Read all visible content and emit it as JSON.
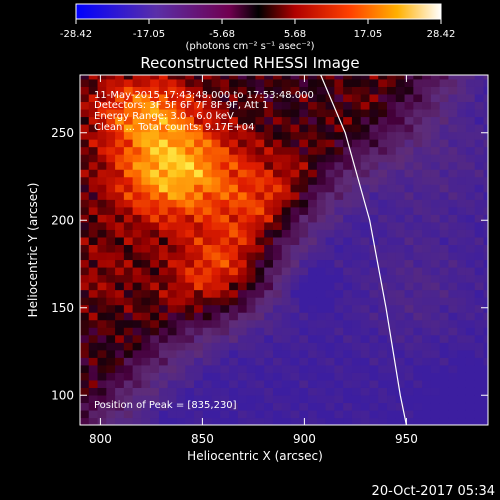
{
  "colorbar": {
    "ticks": [
      "-28.42",
      "-17.05",
      "-5.68",
      "5.68",
      "17.05",
      "28.42"
    ],
    "units": "(photons cm⁻² s⁻¹ asec⁻²)",
    "range": [
      -28.42,
      28.42
    ]
  },
  "chart_data": {
    "type": "heatmap",
    "title": "Reconstructed RHESSI Image",
    "xlabel": "Heliocentric X (arcsec)",
    "ylabel": "Heliocentric Y (arcsec)",
    "xlim": [
      790,
      990
    ],
    "ylim": [
      83,
      283
    ],
    "xticks": [
      800,
      850,
      900,
      950
    ],
    "yticks": [
      100,
      150,
      200,
      250
    ],
    "annotations": [
      "11-May-2015 17:43:48.000 to 17:53:48.000",
      "Detectors: 3F 5F 6F 7F 8F 9F, Att 1",
      "Energy Range: 3.0 - 6.0 keV",
      "Clean ... Total counts: 9.17E+04"
    ],
    "peak_label": "Position of Peak = [835,230]",
    "peak": [
      835,
      230
    ],
    "limb": [
      [
        908,
        283
      ],
      [
        920,
        250
      ],
      [
        932,
        200
      ],
      [
        940,
        150
      ],
      [
        947,
        100
      ],
      [
        950,
        83
      ]
    ]
  },
  "footer": {
    "date": "20-Oct-2017 05:34"
  }
}
